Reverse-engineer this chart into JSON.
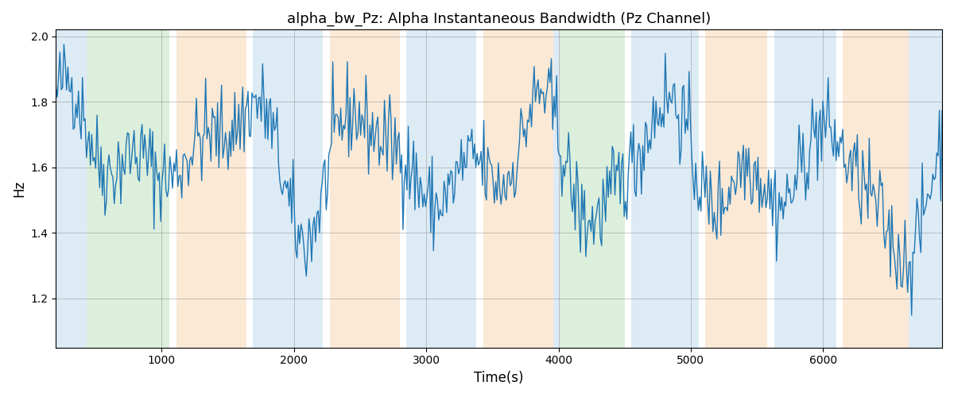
{
  "title": "alpha_bw_Pz: Alpha Instantaneous Bandwidth (Pz Channel)",
  "xlabel": "Time(s)",
  "ylabel": "Hz",
  "ylim": [
    1.05,
    2.02
  ],
  "xlim": [
    200,
    6900
  ],
  "background_bands": [
    {
      "xstart": 200,
      "xend": 430,
      "color": "#aacfe8"
    },
    {
      "xstart": 430,
      "xend": 1060,
      "color": "#a8d8a8"
    },
    {
      "xstart": 1060,
      "xend": 1110,
      "color": "#ffffff"
    },
    {
      "xstart": 1110,
      "xend": 1640,
      "color": "#f5c99a"
    },
    {
      "xstart": 1640,
      "xend": 1690,
      "color": "#ffffff"
    },
    {
      "xstart": 1690,
      "xend": 2220,
      "color": "#aacfe8"
    },
    {
      "xstart": 2220,
      "xend": 2270,
      "color": "#ffffff"
    },
    {
      "xstart": 2270,
      "xend": 2800,
      "color": "#f5c99a"
    },
    {
      "xstart": 2800,
      "xend": 2850,
      "color": "#ffffff"
    },
    {
      "xstart": 2850,
      "xend": 3380,
      "color": "#aacfe8"
    },
    {
      "xstart": 3380,
      "xend": 3430,
      "color": "#ffffff"
    },
    {
      "xstart": 3430,
      "xend": 3960,
      "color": "#f5c99a"
    },
    {
      "xstart": 3960,
      "xend": 4010,
      "color": "#aacfe8"
    },
    {
      "xstart": 4010,
      "xend": 4500,
      "color": "#a8d8a8"
    },
    {
      "xstart": 4500,
      "xend": 4550,
      "color": "#ffffff"
    },
    {
      "xstart": 4550,
      "xend": 5060,
      "color": "#aacfe8"
    },
    {
      "xstart": 5060,
      "xend": 5110,
      "color": "#ffffff"
    },
    {
      "xstart": 5110,
      "xend": 5580,
      "color": "#f5c99a"
    },
    {
      "xstart": 5580,
      "xend": 5630,
      "color": "#ffffff"
    },
    {
      "xstart": 5630,
      "xend": 6100,
      "color": "#aacfe8"
    },
    {
      "xstart": 6100,
      "xend": 6150,
      "color": "#ffffff"
    },
    {
      "xstart": 6150,
      "xend": 6650,
      "color": "#f5c99a"
    },
    {
      "xstart": 6650,
      "xend": 6900,
      "color": "#aacfe8"
    }
  ],
  "band_alpha": 0.4,
  "line_color": "#1f77b4",
  "line_width": 1.0,
  "grid": true,
  "seed": 42,
  "n_points": 670,
  "x_start": 200,
  "x_end": 6900,
  "title_fontsize": 13,
  "label_fontsize": 12,
  "yticks": [
    1.2,
    1.4,
    1.6,
    1.8,
    2.0
  ]
}
